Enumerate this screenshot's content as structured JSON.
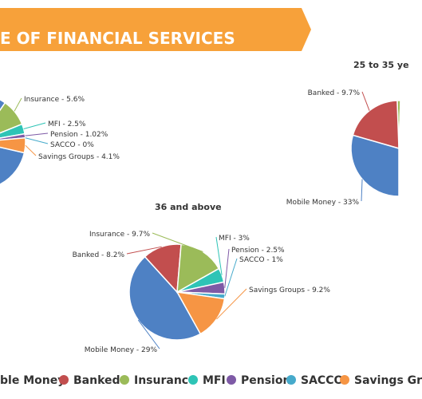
{
  "banner": {
    "title": "E OF FINANCIAL SERVICES",
    "color": "#F7A13A"
  },
  "colors": {
    "Mobile Money": "#4E81C4",
    "Banked": "#C24E4E",
    "Insurance": "#9BBB59",
    "MFI": "#2EC4B6",
    "Pension": "#7E5AA6",
    "SACCO": "#46AACB",
    "Savings Groups": "#F69544"
  },
  "legend": {
    "items": [
      {
        "label": "ble Money",
        "color": "#4E81C4"
      },
      {
        "label": "Banked",
        "color": "#C24E4E"
      },
      {
        "label": "Insurance",
        "color": "#9BBB59"
      },
      {
        "label": "MFI",
        "color": "#2EC4B6"
      },
      {
        "label": "Pension",
        "color": "#7E5AA6"
      },
      {
        "label": "SACCO",
        "color": "#46AACB"
      },
      {
        "label": "Savings Gr",
        "color": "#F69544"
      }
    ]
  },
  "chart_data": [
    {
      "type": "pie",
      "title": "",
      "slices": [
        {
          "label": "Insurance - 5.6%",
          "value": 5.6,
          "series": "Insurance"
        },
        {
          "label": "MFI - 2.5%",
          "value": 2.5,
          "series": "MFI"
        },
        {
          "label": "Pension - 1.02%",
          "value": 1.02,
          "series": "Pension"
        },
        {
          "label": "SACCO - 0%",
          "value": 0,
          "series": "SACCO"
        },
        {
          "label": "Savings Groups - 4.1%",
          "value": 4.1,
          "series": "Savings Groups"
        }
      ]
    },
    {
      "type": "pie",
      "title": "25 to 35 ye",
      "slices": [
        {
          "label": "Banked - 9.7%",
          "value": 9.7,
          "series": "Banked"
        },
        {
          "label": "Mobile Money - 33%",
          "value": 33,
          "series": "Mobile Money"
        }
      ]
    },
    {
      "type": "pie",
      "title": "36 and above",
      "slices": [
        {
          "label": "Mobile Money - 29%",
          "value": 29,
          "series": "Mobile Money"
        },
        {
          "label": "Banked - 8.2%",
          "value": 8.2,
          "series": "Banked"
        },
        {
          "label": "Insurance - 9.7%",
          "value": 9.7,
          "series": "Insurance"
        },
        {
          "label": "MFI - 3%",
          "value": 3,
          "series": "MFI"
        },
        {
          "label": "Pension - 2.5%",
          "value": 2.5,
          "series": "Pension"
        },
        {
          "label": "SACCO - 1%",
          "value": 1,
          "series": "SACCO"
        },
        {
          "label": "Savings Groups - 9.2%",
          "value": 9.2,
          "series": "Savings Groups"
        }
      ]
    }
  ]
}
